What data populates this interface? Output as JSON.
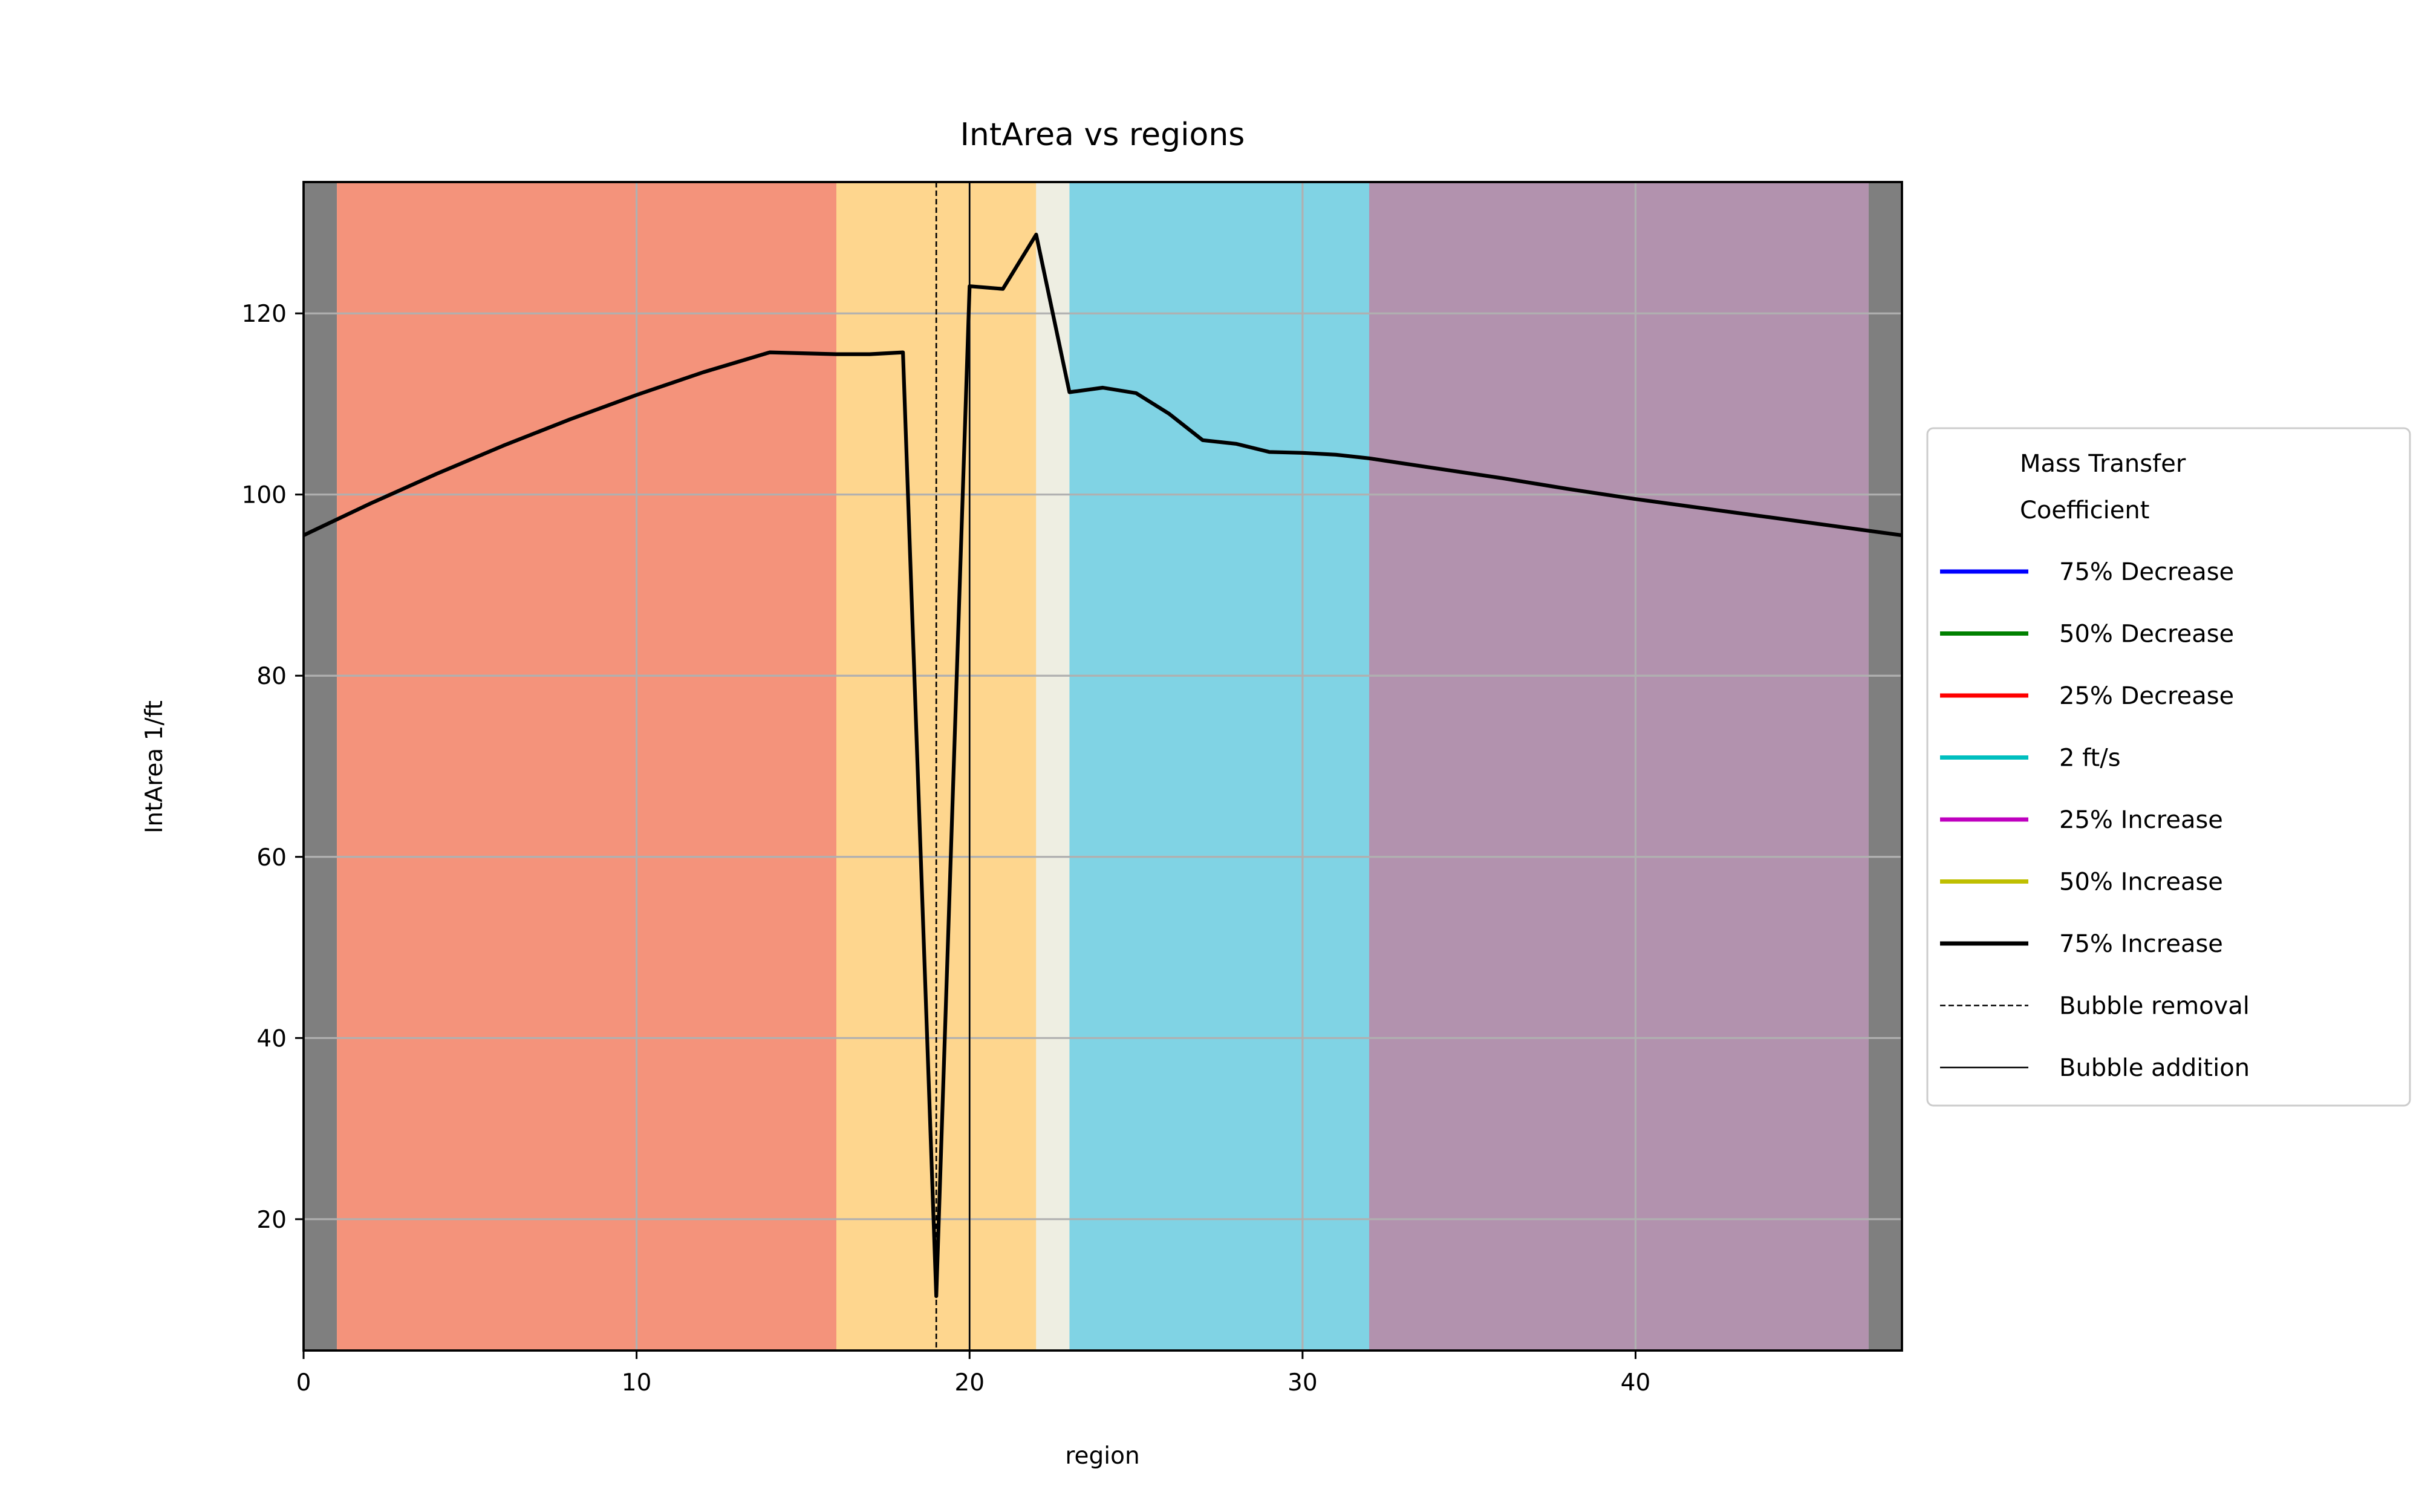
{
  "chart_data": {
    "type": "line",
    "title": "IntArea vs regions",
    "xlabel": "region",
    "ylabel": "IntArea 1/ft",
    "xlim": [
      0,
      48
    ],
    "ylim": [
      5.5,
      134.5
    ],
    "xticks": [
      0,
      10,
      20,
      30,
      40
    ],
    "yticks": [
      20,
      40,
      60,
      80,
      100,
      120
    ],
    "grid": true,
    "legend": {
      "title": "Mass Transfer\nCoefficient",
      "placement": "outside-right"
    },
    "bands": [
      {
        "x0": 0,
        "x1": 1,
        "color": "#7f7f7f"
      },
      {
        "x0": 1,
        "x1": 16,
        "color": "#f4937b"
      },
      {
        "x0": 16,
        "x1": 22,
        "color": "#fed68e"
      },
      {
        "x0": 22,
        "x1": 23,
        "color": "#eeeee2"
      },
      {
        "x0": 23,
        "x1": 32,
        "color": "#80d3e4"
      },
      {
        "x0": 32,
        "x1": 47,
        "color": "#b292ae"
      },
      {
        "x0": 47,
        "x1": 48,
        "color": "#7f7f7f"
      }
    ],
    "series": [
      {
        "name": "75% Decrease",
        "color": "#0000ff",
        "linewidth": 2,
        "values": []
      },
      {
        "name": "50% Decrease",
        "color": "#008000",
        "linewidth": 2,
        "values": []
      },
      {
        "name": "25% Decrease",
        "color": "#ff0000",
        "linewidth": 2,
        "values": []
      },
      {
        "name": "2 ft/s",
        "color": "#00bfbf",
        "linewidth": 2,
        "values": []
      },
      {
        "name": "25% Increase",
        "color": "#bf00bf",
        "linewidth": 2,
        "values": []
      },
      {
        "name": "50% Increase",
        "color": "#bfbf00",
        "linewidth": 2,
        "values": []
      },
      {
        "name": "75% Increase",
        "color": "#000000",
        "linewidth": 2,
        "x": [
          0,
          2,
          4,
          6,
          8,
          10,
          12,
          14,
          16,
          17,
          18,
          19,
          20,
          21,
          22,
          23,
          24,
          25,
          26,
          27,
          28,
          29,
          30,
          31,
          32,
          34,
          36,
          38,
          40,
          42,
          44,
          46,
          48
        ],
        "values": [
          95.5,
          99.0,
          102.3,
          105.4,
          108.3,
          111.0,
          113.5,
          115.7,
          115.5,
          115.5,
          115.7,
          11.5,
          123.0,
          122.7,
          128.7,
          111.3,
          111.8,
          111.2,
          108.9,
          106.0,
          105.6,
          104.7,
          104.6,
          104.4,
          104.0,
          102.9,
          101.8,
          100.6,
          99.5,
          98.5,
          97.5,
          96.5,
          95.5
        ]
      }
    ],
    "vlines": [
      {
        "name": "Bubble removal",
        "x": 19,
        "style": "dashed",
        "color": "#000000"
      },
      {
        "name": "Bubble addition",
        "x": 20,
        "style": "solid",
        "color": "#000000"
      }
    ]
  }
}
